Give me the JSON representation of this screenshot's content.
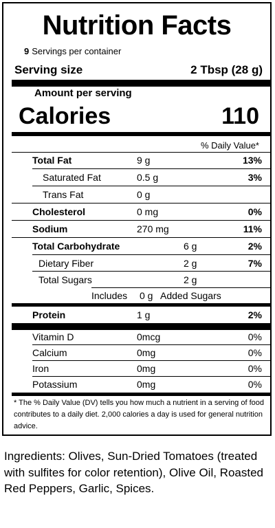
{
  "label": {
    "title": "Nutrition Facts",
    "servings_number": "9",
    "servings_text": "Servings per container",
    "serving_size_label": "Serving size",
    "serving_size_value": "2 Tbsp (28 g)",
    "amount_per_serving": "Amount per serving",
    "calories_label": "Calories",
    "calories_value": "110",
    "daily_value_header": "% Daily Value*",
    "nutrients": [
      {
        "name": "Total Fat",
        "amount": "9 g",
        "dv": "13%"
      },
      {
        "name": "Saturated Fat",
        "amount": "0.5 g",
        "dv": "3%"
      },
      {
        "name": "Trans Fat",
        "amount": "0 g",
        "dv": ""
      },
      {
        "name": "Cholesterol",
        "amount": "0 mg",
        "dv": "0%"
      },
      {
        "name": "Sodium",
        "amount": "270 mg",
        "dv": "11%"
      },
      {
        "name": "Total Carbohydrate",
        "amount": "6 g",
        "dv": "2%"
      },
      {
        "name": "Dietary Fiber",
        "amount": "2 g",
        "dv": "7%"
      },
      {
        "name": "Total Sugars",
        "amount": "2 g",
        "dv": ""
      },
      {
        "name": "Includes",
        "amount": "0 g",
        "suffix": "Added Sugars"
      },
      {
        "name": "Protein",
        "amount": "1 g",
        "dv": "2%"
      }
    ],
    "vitamins": [
      {
        "name": "Vitamin D",
        "amount": "0mcg",
        "dv": "0%"
      },
      {
        "name": "Calcium",
        "amount": "0mg",
        "dv": "0%"
      },
      {
        "name": "Iron",
        "amount": "0mg",
        "dv": "0%"
      },
      {
        "name": "Potassium",
        "amount": "0mg",
        "dv": "0%"
      }
    ],
    "footnote": "* The % Daily Value (DV) tells you how much a nutrient in a serving of food contributes to a daily diet.  2,000 calories a day is used for general nutrition advice."
  },
  "ingredients": "Ingredients: Olives, Sun-Dried Tomatoes (treated with sulfites for color retention), Olive Oil, Roasted Red Peppers, Garlic, Spices."
}
